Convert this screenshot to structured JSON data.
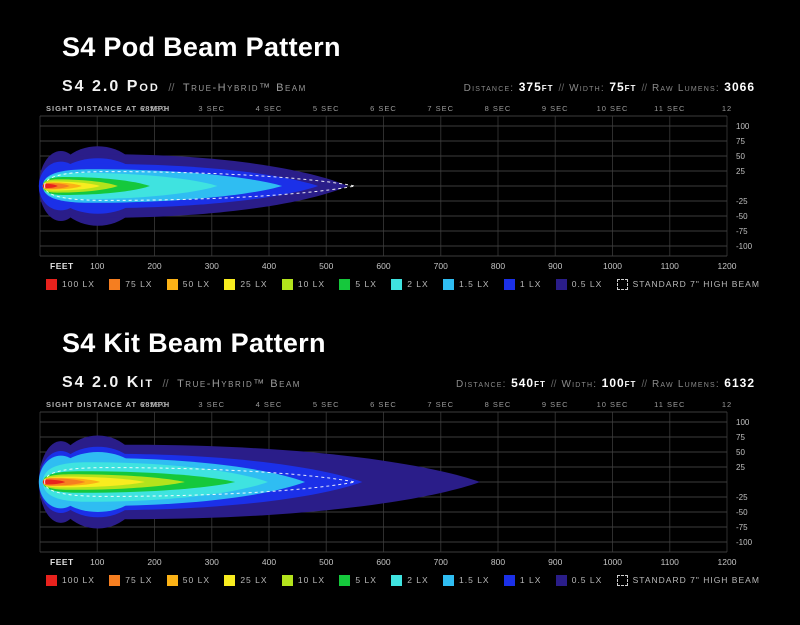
{
  "sep": "//",
  "legend": {
    "items": [
      {
        "label": "100 LX",
        "color": "#e8221d"
      },
      {
        "label": "75 LX",
        "color": "#f57e20"
      },
      {
        "label": "50 LX",
        "color": "#fbb216"
      },
      {
        "label": "25 LX",
        "color": "#f8ec1f"
      },
      {
        "label": "10 LX",
        "color": "#b3e31c"
      },
      {
        "label": "5 LX",
        "color": "#15c83c"
      },
      {
        "label": "2 LX",
        "color": "#3fe3e0"
      },
      {
        "label": "1.5 LX",
        "color": "#2fbdf2"
      },
      {
        "label": "1 LX",
        "color": "#1b30e8"
      },
      {
        "label": "0.5 LX",
        "color": "#2a1d89"
      },
      {
        "label": "STANDARD 7\" HIGH BEAM",
        "color": "none",
        "outline": true
      }
    ]
  },
  "charts": [
    {
      "title": "S4 Pod Beam Pattern",
      "product": "S4 2.0 Pod",
      "separator": "//",
      "beam_name": "True-Hybrid™ Beam",
      "stats": [
        {
          "label": "Distance:",
          "value": "375ft"
        },
        {
          "label": "Width:",
          "value": "75ft"
        },
        {
          "label": "Raw Lumens:",
          "value": "3066"
        }
      ]
    },
    {
      "title": "S4 Kit Beam Pattern",
      "product": "S4 2.0 Kit",
      "separator": "//",
      "beam_name": "True-Hybrid™ Beam",
      "stats": [
        {
          "label": "Distance:",
          "value": "540ft"
        },
        {
          "label": "Width:",
          "value": "100ft"
        },
        {
          "label": "Raw Lumens:",
          "value": "6132"
        }
      ]
    }
  ],
  "chart_data": [
    {
      "type": "area",
      "title": "S4 2.0 Pod True-Hybrid beam isolux footprint",
      "xlabel": "FEET",
      "x_ticks": [
        100,
        200,
        300,
        400,
        500,
        600,
        700,
        800,
        900,
        1000,
        1100,
        1200
      ],
      "xlim": [
        0,
        1200
      ],
      "y_ticks": [
        100,
        75,
        50,
        25,
        -25,
        -50,
        -75,
        -100
      ],
      "ylim": [
        -112,
        112
      ],
      "grid": true,
      "legend_position": "bottom",
      "top_axis": {
        "label": "SIGHT DISTANCE AT 68MPH",
        "ticks": [
          "2 SEC",
          "3 SEC",
          "4 SEC",
          "5 SEC",
          "6 SEC",
          "7 SEC",
          "8 SEC",
          "9 SEC",
          "10 SEC",
          "11 SEC",
          "12"
        ],
        "positions_ft": [
          200,
          300,
          400,
          500,
          600,
          700,
          800,
          900,
          1000,
          1100,
          1200
        ]
      },
      "contours": [
        {
          "lux": "100 LX",
          "color": "#e8221d",
          "distance_ft": 31,
          "half_width_ft": 3.5
        },
        {
          "lux": "75 LX",
          "color": "#f57e20",
          "distance_ft": 52,
          "half_width_ft": 5
        },
        {
          "lux": "50 LX",
          "color": "#fbb216",
          "distance_ft": 73,
          "half_width_ft": 6
        },
        {
          "lux": "25 LX",
          "color": "#f8ec1f",
          "distance_ft": 105,
          "half_width_ft": 7.5
        },
        {
          "lux": "10 LX",
          "color": "#b3e31c",
          "distance_ft": 136,
          "half_width_ft": 11
        },
        {
          "lux": "5 LX",
          "color": "#15c83c",
          "distance_ft": 192,
          "half_width_ft": 15
        },
        {
          "lux": "2 LX",
          "color": "#3fe3e0",
          "distance_ft": 310,
          "half_width_ft": 22
        },
        {
          "lux": "1.5 LX",
          "color": "#2fbdf2",
          "distance_ft": 423,
          "half_width_ft": 28
        },
        {
          "lux": "1 LX",
          "color": "#1b30e8",
          "distance_ft": 486,
          "half_width_ft": 37
        },
        {
          "lux": "0.5 LX",
          "color": "#2a1d89",
          "distance_ft": 538,
          "half_width_ft": 53
        }
      ],
      "overlay": {
        "label": "STANDARD 7\" HIGH BEAM",
        "distance_ft": 550,
        "half_width_ft": 24,
        "style": "dashed-white"
      }
    },
    {
      "type": "area",
      "title": "S4 2.0 Kit True-Hybrid beam isolux footprint",
      "xlabel": "FEET",
      "x_ticks": [
        100,
        200,
        300,
        400,
        500,
        600,
        700,
        800,
        900,
        1000,
        1100,
        1200
      ],
      "xlim": [
        0,
        1200
      ],
      "y_ticks": [
        100,
        75,
        50,
        25,
        -25,
        -50,
        -75,
        -100
      ],
      "ylim": [
        -112,
        112
      ],
      "grid": true,
      "legend_position": "bottom",
      "top_axis": {
        "label": "SIGHT DISTANCE AT 68MPH",
        "ticks": [
          "2 SEC",
          "3 SEC",
          "4 SEC",
          "5 SEC",
          "6 SEC",
          "7 SEC",
          "8 SEC",
          "9 SEC",
          "10 SEC",
          "11 SEC",
          "12"
        ],
        "positions_ft": [
          200,
          300,
          400,
          500,
          600,
          700,
          800,
          900,
          1000,
          1100,
          1200
        ]
      },
      "contours": [
        {
          "lux": "100 LX",
          "color": "#e8221d",
          "distance_ft": 44,
          "half_width_ft": 4
        },
        {
          "lux": "75 LX",
          "color": "#f57e20",
          "distance_ft": 79,
          "half_width_ft": 6
        },
        {
          "lux": "50 LX",
          "color": "#fbb216",
          "distance_ft": 105,
          "half_width_ft": 7
        },
        {
          "lux": "25 LX",
          "color": "#f8ec1f",
          "distance_ft": 183,
          "half_width_ft": 9
        },
        {
          "lux": "10 LX",
          "color": "#b3e31c",
          "distance_ft": 253,
          "half_width_ft": 13
        },
        {
          "lux": "5 LX",
          "color": "#15c83c",
          "distance_ft": 341,
          "half_width_ft": 18
        },
        {
          "lux": "2 LX",
          "color": "#3fe3e0",
          "distance_ft": 398,
          "half_width_ft": 33
        },
        {
          "lux": "1.5 LX",
          "color": "#2fbdf2",
          "distance_ft": 463,
          "half_width_ft": 40
        },
        {
          "lux": "1 LX",
          "color": "#1b30e8",
          "distance_ft": 563,
          "half_width_ft": 47
        },
        {
          "lux": "0.5 LX",
          "color": "#2a1d89",
          "distance_ft": 769,
          "half_width_ft": 62
        }
      ],
      "overlay": {
        "label": "STANDARD 7\" HIGH BEAM",
        "distance_ft": 550,
        "half_width_ft": 24,
        "style": "dashed-white"
      }
    }
  ]
}
